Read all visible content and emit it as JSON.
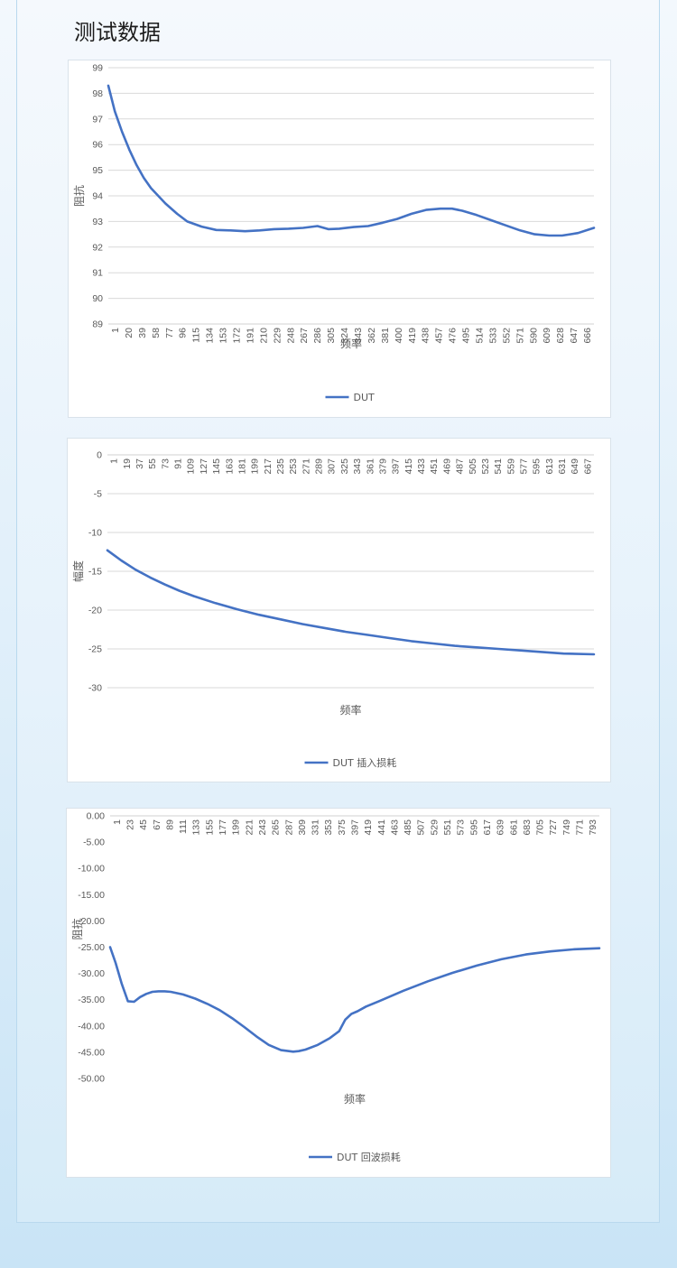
{
  "page": {
    "title": "测试数据",
    "series_color": "#4472c4"
  },
  "chart_data": [
    {
      "type": "line",
      "title": "",
      "xlabel": "频率",
      "ylabel": "阻抗",
      "ylim": [
        89,
        99
      ],
      "y_ticks": [
        "99",
        "98",
        "97",
        "96",
        "95",
        "94",
        "93",
        "92",
        "91",
        "90",
        "89"
      ],
      "x_tick_labels": [
        "1",
        "20",
        "39",
        "58",
        "77",
        "96",
        "115",
        "134",
        "153",
        "172",
        "191",
        "210",
        "229",
        "248",
        "267",
        "286",
        "305",
        "324",
        "343",
        "362",
        "381",
        "400",
        "419",
        "438",
        "457",
        "476",
        "495",
        "514",
        "533",
        "552",
        "571",
        "590",
        "609",
        "628",
        "647",
        "666"
      ],
      "x_range": [
        1,
        672
      ],
      "grid": true,
      "legend": "bottom",
      "series": [
        {
          "name": "DUT",
          "x": [
            1,
            10,
            20,
            30,
            40,
            50,
            60,
            70,
            80,
            96,
            110,
            130,
            150,
            170,
            190,
            210,
            230,
            250,
            270,
            290,
            305,
            320,
            340,
            360,
            380,
            400,
            420,
            440,
            460,
            476,
            490,
            510,
            530,
            550,
            570,
            590,
            610,
            628,
            650,
            672
          ],
          "y": [
            98.3,
            97.3,
            96.5,
            95.8,
            95.2,
            94.7,
            94.3,
            94.0,
            93.7,
            93.3,
            93.0,
            92.8,
            92.67,
            92.65,
            92.62,
            92.65,
            92.7,
            92.72,
            92.75,
            92.82,
            92.7,
            92.72,
            92.78,
            92.82,
            92.95,
            93.1,
            93.3,
            93.45,
            93.5,
            93.5,
            93.42,
            93.25,
            93.05,
            92.85,
            92.65,
            92.5,
            92.45,
            92.45,
            92.55,
            92.75
          ]
        }
      ]
    },
    {
      "type": "line",
      "title": "",
      "xlabel": "频率",
      "ylabel": "幅度",
      "ylim": [
        -30,
        0
      ],
      "y_ticks": [
        "0",
        "-5",
        "-10",
        "-15",
        "-20",
        "-25",
        "-30"
      ],
      "x_tick_labels": [
        "1",
        "19",
        "37",
        "55",
        "73",
        "91",
        "109",
        "127",
        "145",
        "163",
        "181",
        "199",
        "217",
        "235",
        "253",
        "271",
        "289",
        "307",
        "325",
        "343",
        "361",
        "379",
        "397",
        "415",
        "433",
        "451",
        "469",
        "487",
        "505",
        "523",
        "541",
        "559",
        "577",
        "595",
        "613",
        "631",
        "649",
        "667"
      ],
      "x_range": [
        1,
        672
      ],
      "grid": true,
      "legend": "bottom",
      "series": [
        {
          "name": "DUT 插入损耗",
          "x": [
            1,
            20,
            40,
            60,
            80,
            100,
            120,
            150,
            180,
            210,
            240,
            270,
            300,
            330,
            360,
            390,
            420,
            450,
            480,
            510,
            540,
            570,
            600,
            630,
            672
          ],
          "y": [
            -12.3,
            -13.6,
            -14.8,
            -15.8,
            -16.7,
            -17.5,
            -18.2,
            -19.1,
            -19.9,
            -20.6,
            -21.2,
            -21.8,
            -22.3,
            -22.8,
            -23.2,
            -23.6,
            -24.0,
            -24.3,
            -24.6,
            -24.8,
            -25.0,
            -25.2,
            -25.4,
            -25.6,
            -25.7
          ]
        }
      ]
    },
    {
      "type": "line",
      "title": "",
      "xlabel": "频率",
      "ylabel": "阻抗",
      "ylim": [
        -50,
        0
      ],
      "y_ticks": [
        "0.00",
        "-5.00",
        "-10.00",
        "-15.00",
        "-20.00",
        "-25.00",
        "-30.00",
        "-35.00",
        "-40.00",
        "-45.00",
        "-50.00"
      ],
      "x_tick_labels": [
        "1",
        "23",
        "45",
        "67",
        "89",
        "111",
        "133",
        "155",
        "177",
        "199",
        "221",
        "243",
        "265",
        "287",
        "309",
        "331",
        "353",
        "375",
        "397",
        "419",
        "441",
        "463",
        "485",
        "507",
        "529",
        "551",
        "573",
        "595",
        "617",
        "639",
        "661",
        "683",
        "705",
        "727",
        "749",
        "771",
        "793"
      ],
      "x_range": [
        1,
        800
      ],
      "grid": false,
      "legend": "bottom",
      "series": [
        {
          "name": "DUT 回波损耗",
          "x": [
            1,
            10,
            20,
            30,
            40,
            50,
            60,
            70,
            80,
            90,
            100,
            120,
            140,
            160,
            180,
            200,
            220,
            240,
            260,
            280,
            300,
            309,
            320,
            340,
            360,
            375,
            385,
            395,
            405,
            419,
            440,
            480,
            520,
            560,
            600,
            640,
            680,
            720,
            760,
            800
          ],
          "y": [
            -25,
            -28,
            -32,
            -35.3,
            -35.4,
            -34.5,
            -33.9,
            -33.5,
            -33.4,
            -33.4,
            -33.5,
            -34,
            -34.8,
            -35.8,
            -37,
            -38.5,
            -40.2,
            -42,
            -43.6,
            -44.6,
            -44.9,
            -44.8,
            -44.5,
            -43.6,
            -42.3,
            -41,
            -38.8,
            -37.7,
            -37.2,
            -36.3,
            -35.3,
            -33.3,
            -31.5,
            -29.9,
            -28.5,
            -27.3,
            -26.4,
            -25.8,
            -25.4,
            -25.2
          ]
        }
      ]
    }
  ]
}
